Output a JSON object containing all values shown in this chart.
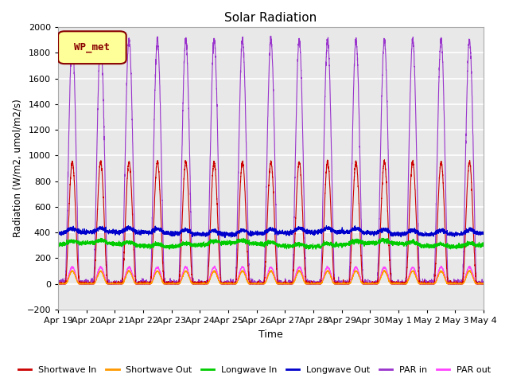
{
  "title": "Solar Radiation",
  "xlabel": "Time",
  "ylabel": "Radiation (W/m2, umol/m2/s)",
  "ylim": [
    -200,
    2000
  ],
  "yticks": [
    -200,
    0,
    200,
    400,
    600,
    800,
    1000,
    1200,
    1400,
    1600,
    1800,
    2000
  ],
  "n_days": 15,
  "legend_label": "WP_met",
  "legend_box_color": "#ffff99",
  "legend_box_edge": "#880000",
  "series": {
    "shortwave_in": {
      "color": "#cc0000",
      "label": "Shortwave In"
    },
    "shortwave_out": {
      "color": "#ff9900",
      "label": "Shortwave Out"
    },
    "longwave_in": {
      "color": "#00cc00",
      "label": "Longwave In"
    },
    "longwave_out": {
      "color": "#0000cc",
      "label": "Longwave Out"
    },
    "par_in": {
      "color": "#9933cc",
      "label": "PAR in"
    },
    "par_out": {
      "color": "#ff44ff",
      "label": "PAR out"
    }
  },
  "xtick_labels": [
    "Apr 19",
    "Apr 20",
    "Apr 21",
    "Apr 22",
    "Apr 23",
    "Apr 24",
    "Apr 25",
    "Apr 26",
    "Apr 27",
    "Apr 28",
    "Apr 29",
    "Apr 30",
    "May 1",
    "May 2",
    "May 3",
    "May 4"
  ],
  "background_color": "#e8e8e8",
  "grid_color": "#ffffff",
  "figsize": [
    6.4,
    4.8
  ],
  "dpi": 100
}
